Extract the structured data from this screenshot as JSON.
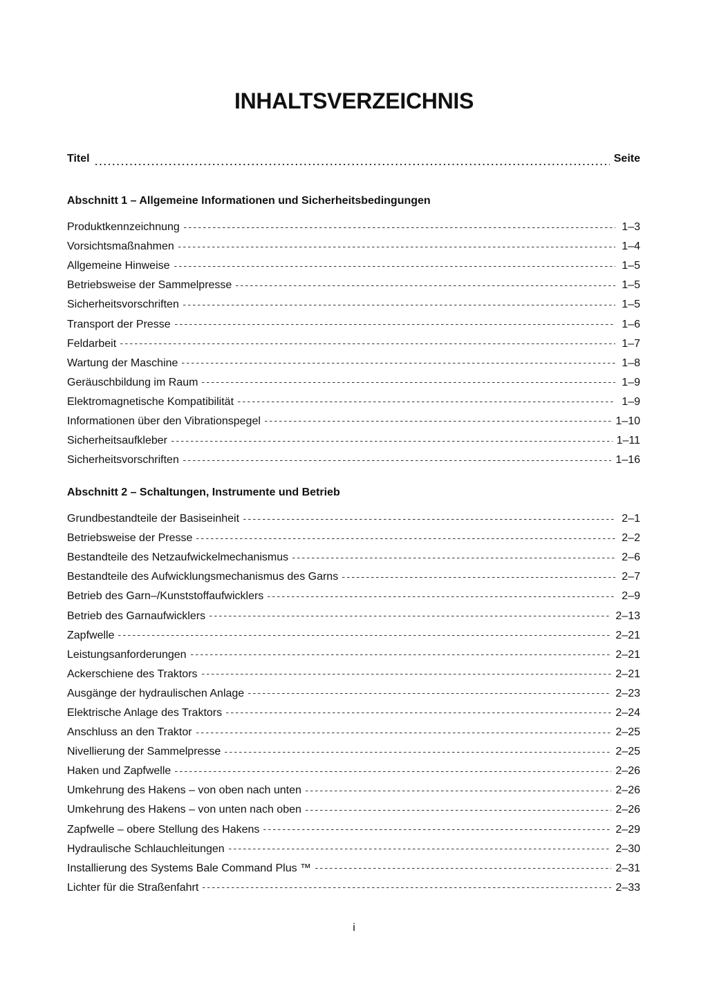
{
  "title": "INHALTSVERZEICHNIS",
  "header": {
    "left": "Titel",
    "right": "Seite"
  },
  "sections": [
    {
      "title": "Abschnitt 1 – Allgemeine Informationen und Sicherheitsbedingungen",
      "entries": [
        {
          "label": "Produktkennzeichnung",
          "page": "1–3"
        },
        {
          "label": "Vorsichtsmaßnahmen",
          "page": "1–4"
        },
        {
          "label": "Allgemeine Hinweise",
          "page": "1–5"
        },
        {
          "label": "Betriebsweise der Sammelpresse",
          "page": "1–5"
        },
        {
          "label": "Sicherheitsvorschriften",
          "page": "1–5"
        },
        {
          "label": "Transport der Presse",
          "page": "1–6"
        },
        {
          "label": "Feldarbeit",
          "page": "1–7"
        },
        {
          "label": "Wartung der Maschine",
          "page": "1–8"
        },
        {
          "label": "Geräuschbildung im Raum",
          "page": "1–9"
        },
        {
          "label": "Elektromagnetische Kompatibilität",
          "page": "1–9"
        },
        {
          "label": "Informationen über den Vibrationspegel",
          "page": "1–10"
        },
        {
          "label": "Sicherheitsaufkleber",
          "page": "1–11"
        },
        {
          "label": "Sicherheitsvorschriften",
          "page": "1–16"
        }
      ]
    },
    {
      "title": "Abschnitt 2 – Schaltungen, Instrumente und Betrieb",
      "entries": [
        {
          "label": "Grundbestandteile der Basiseinheit",
          "page": "2–1"
        },
        {
          "label": "Betriebsweise der Presse",
          "page": "2–2"
        },
        {
          "label": "Bestandteile des Netzaufwickelmechanismus",
          "page": "2–6"
        },
        {
          "label": "Bestandteile des Aufwicklungsmechanismus des Garns",
          "page": "2–7"
        },
        {
          "label": "Betrieb des Garn–/Kunststoffaufwicklers",
          "page": "2–9"
        },
        {
          "label": "Betrieb des Garnaufwicklers",
          "page": "2–13"
        },
        {
          "label": "Zapfwelle",
          "page": "2–21"
        },
        {
          "label": "Leistungsanforderungen",
          "page": "2–21"
        },
        {
          "label": "Ackerschiene des Traktors",
          "page": "2–21"
        },
        {
          "label": "Ausgänge der hydraulischen Anlage",
          "page": "2–23"
        },
        {
          "label": "Elektrische Anlage des Traktors",
          "page": "2–24"
        },
        {
          "label": "Anschluss an den Traktor",
          "page": "2–25"
        },
        {
          "label": "Nivellierung der Sammelpresse",
          "page": "2–25"
        },
        {
          "label": "Haken und Zapfwelle",
          "page": "2–26"
        },
        {
          "label": "Umkehrung des Hakens – von oben nach unten",
          "page": "2–26"
        },
        {
          "label": "Umkehrung des Hakens – von unten nach oben",
          "page": "2–26"
        },
        {
          "label": "Zapfwelle – obere Stellung des Hakens",
          "page": "2–29"
        },
        {
          "label": "Hydraulische Schlauchleitungen",
          "page": "2–30"
        },
        {
          "label": "Installierung des Systems Bale Command Plus ™",
          "page": "2–31"
        },
        {
          "label": "Lichter für die Straßenfahrt",
          "page": "2–33"
        }
      ]
    }
  ],
  "footer": {
    "folio": "i"
  }
}
